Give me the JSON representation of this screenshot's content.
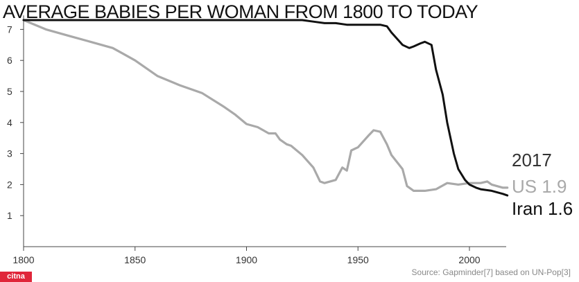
{
  "title": "AVERAGE BABIES PER WOMAN FROM 1800 TO TODAY",
  "source": "Source: Gapminder[7] based on UN-Pop[3]",
  "logo_text": "citna",
  "colors": {
    "iran": "#111111",
    "us": "#a9a9a9",
    "axis": "#444444"
  },
  "chart_data": {
    "type": "line",
    "title": "AVERAGE BABIES PER WOMAN FROM 1800 TO TODAY",
    "xlabel": "",
    "ylabel": "",
    "xlim": [
      1800,
      2020
    ],
    "ylim": [
      0,
      7.5
    ],
    "x_ticks": [
      1800,
      1850,
      1900,
      1950,
      2000
    ],
    "y_ticks": [
      1,
      2,
      3,
      4,
      5,
      6,
      7
    ],
    "grid": false,
    "end_year_label": "2017",
    "series": [
      {
        "name": "US",
        "end_label": "US 1.9",
        "color": "#a9a9a9",
        "x": [
          1800,
          1810,
          1820,
          1830,
          1840,
          1845,
          1850,
          1860,
          1870,
          1880,
          1890,
          1895,
          1900,
          1905,
          1910,
          1913,
          1915,
          1918,
          1920,
          1925,
          1930,
          1933,
          1935,
          1940,
          1943,
          1945,
          1947,
          1950,
          1955,
          1957,
          1960,
          1963,
          1965,
          1970,
          1972,
          1975,
          1980,
          1985,
          1990,
          1995,
          2000,
          2005,
          2008,
          2010,
          2015,
          2017
        ],
        "values": [
          7.3,
          7.0,
          6.8,
          6.6,
          6.4,
          6.2,
          6.0,
          5.5,
          5.2,
          4.95,
          4.5,
          4.25,
          3.95,
          3.85,
          3.65,
          3.65,
          3.45,
          3.3,
          3.25,
          2.95,
          2.55,
          2.1,
          2.05,
          2.15,
          2.55,
          2.45,
          3.1,
          3.2,
          3.6,
          3.75,
          3.7,
          3.3,
          2.95,
          2.5,
          1.95,
          1.8,
          1.8,
          1.85,
          2.05,
          2.0,
          2.05,
          2.05,
          2.1,
          2.0,
          1.9,
          1.9
        ]
      },
      {
        "name": "Iran",
        "end_label": "Iran 1.6",
        "color": "#111111",
        "x": [
          1800,
          1850,
          1900,
          1925,
          1930,
          1935,
          1940,
          1945,
          1950,
          1955,
          1960,
          1963,
          1965,
          1970,
          1973,
          1975,
          1978,
          1980,
          1983,
          1985,
          1988,
          1990,
          1993,
          1995,
          1998,
          2000,
          2003,
          2005,
          2010,
          2015,
          2017
        ],
        "values": [
          7.3,
          7.3,
          7.3,
          7.3,
          7.25,
          7.2,
          7.2,
          7.15,
          7.15,
          7.15,
          7.15,
          7.1,
          6.9,
          6.5,
          6.4,
          6.45,
          6.55,
          6.6,
          6.5,
          5.7,
          4.9,
          4.0,
          3.0,
          2.5,
          2.15,
          2.0,
          1.9,
          1.85,
          1.8,
          1.7,
          1.65
        ]
      }
    ]
  }
}
